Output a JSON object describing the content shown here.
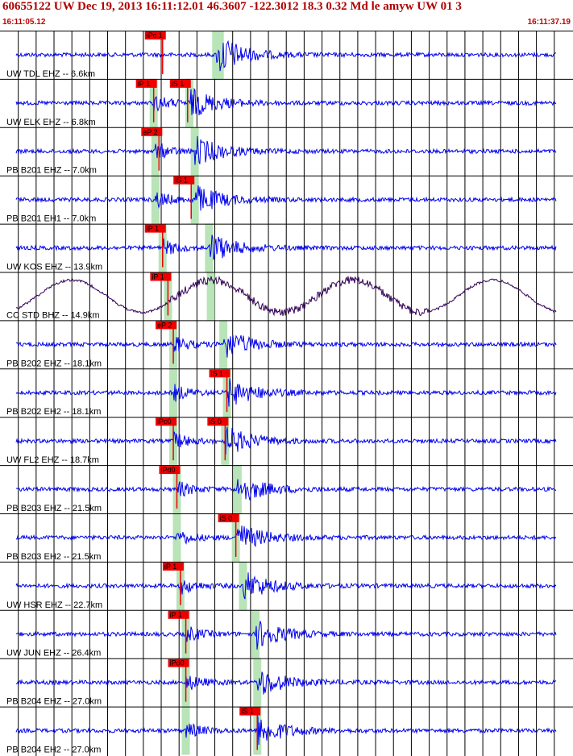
{
  "header": {
    "title": "60655122 UW Dec 19, 2013 16:11:12.01   46.3607 -122.3012 18.3 0.32 Md le amyw UW 01   3",
    "start_time": "16:11:05.12",
    "end_time": "16:11:37.19"
  },
  "colors": {
    "trace": "#0000ee",
    "broadband": "#330055",
    "pick": "#ee0000",
    "window": "#b8e4b8",
    "grid": "#000000",
    "arrival_curve": "#000000"
  },
  "chart_data": {
    "type": "line",
    "title": "60655122 UW Dec 19, 2013 16:11:12.01   46.3607 -122.3012 18.3 0.32 Md le amyw UW 01   3",
    "x_range": [
      "16:11:05.12",
      "16:11:37.19"
    ],
    "xlabel": "",
    "ylabel": "",
    "grid": true,
    "series": [
      {
        "name": "UW TDL EHZ -- 6.6km",
        "picks": [
          {
            "label": "iPc 1",
            "t": 9.1
          }
        ],
        "p_window": 12.1,
        "s_window": 12.3,
        "style": "short-period"
      },
      {
        "name": "UW ELK EHZ -- 6.8km",
        "picks": [
          {
            "label": "iP 1",
            "t": 8.6
          },
          {
            "label": "iS 1",
            "t": 10.5
          }
        ],
        "p_window": 8.6,
        "s_window": 10.6,
        "style": "short-period"
      },
      {
        "name": "PB B201 EHZ -- 7.0km",
        "picks": [
          {
            "label": "eP 2",
            "t": 8.9
          }
        ],
        "p_window": 8.7,
        "s_window": 10.9,
        "style": "short-period"
      },
      {
        "name": "PB B201 EH1 -- 7.0km",
        "picks": [
          {
            "label": "iS 1",
            "t": 10.7
          }
        ],
        "p_window": 8.7,
        "s_window": 10.9,
        "style": "short-period"
      },
      {
        "name": "UW KOS EHZ -- 13.9km",
        "picks": [
          {
            "label": "iP 1",
            "t": 9.1
          }
        ],
        "p_window": 9.1,
        "s_window": 11.7,
        "style": "short-period"
      },
      {
        "name": "CC STD BHZ -- 14.9km",
        "picks": [
          {
            "label": "iP 1",
            "t": 9.4
          }
        ],
        "p_window": 9.4,
        "s_window": 11.8,
        "style": "broadband"
      },
      {
        "name": "PB B202 EHZ -- 18.1km",
        "picks": [
          {
            "label": "eP 2",
            "t": 9.7
          }
        ],
        "p_window": 9.7,
        "s_window": 12.5,
        "style": "short-period"
      },
      {
        "name": "PB B202 EH2 -- 18.1km",
        "picks": [
          {
            "label": "iS 1",
            "t": 12.7
          }
        ],
        "p_window": 9.7,
        "s_window": 12.7,
        "style": "short-period"
      },
      {
        "name": "UW FL2 EHZ -- 18.7km",
        "picks": [
          {
            "label": "iPc0",
            "t": 9.7
          },
          {
            "label": "iS 0",
            "t": 12.6
          }
        ],
        "p_window": 9.7,
        "s_window": 12.6,
        "style": "short-period"
      },
      {
        "name": "PB B203 EHZ -- 21.5km",
        "picks": [
          {
            "label": "iPd0",
            "t": 9.9
          }
        ],
        "p_window": 9.9,
        "s_window": 13.3,
        "style": "short-period"
      },
      {
        "name": "PB B203 EH2 -- 21.5km",
        "picks": [
          {
            "label": "iS 0",
            "t": 13.2
          }
        ],
        "p_window": 9.9,
        "s_window": 13.2,
        "style": "short-period"
      },
      {
        "name": "UW HSR EHZ -- 22.7km",
        "picks": [
          {
            "label": "iP 1",
            "t": 10.1
          }
        ],
        "p_window": 10.1,
        "s_window": 13.6,
        "style": "short-period"
      },
      {
        "name": "UW JUN EHZ -- 26.4km",
        "picks": [
          {
            "label": "iP 1",
            "t": 10.4
          }
        ],
        "p_window": 10.4,
        "s_window": 14.3,
        "style": "short-period"
      },
      {
        "name": "PB B204 EHZ -- 27.0km",
        "picks": [
          {
            "label": "iPd0",
            "t": 10.4
          }
        ],
        "p_window": 10.4,
        "s_window": 14.4,
        "style": "short-period"
      },
      {
        "name": "PB B204 EH2 -- 27.0km",
        "picks": [
          {
            "label": "iS 1",
            "t": 14.4
          }
        ],
        "p_window": 10.4,
        "s_window": 14.4,
        "style": "short-period"
      }
    ]
  }
}
